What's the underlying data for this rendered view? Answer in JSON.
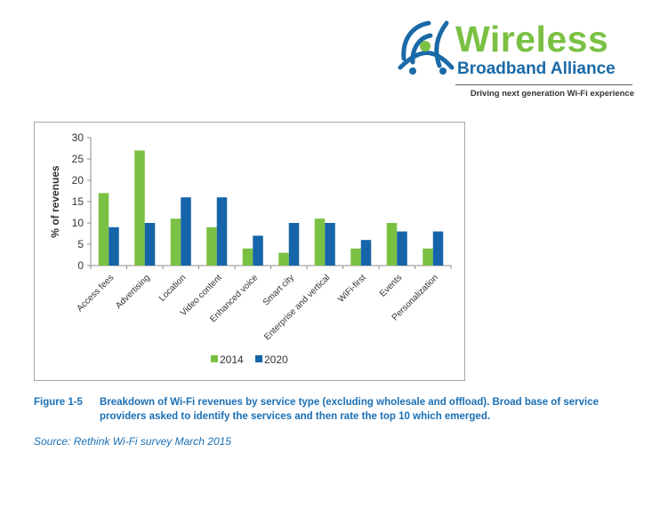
{
  "logo": {
    "wordmark": "Wireless",
    "subbrand": "Broadband Alliance",
    "tagline": "Driving next generation Wi-Fi experience",
    "icon": "wba-wifi-signal-icon"
  },
  "figure": {
    "label": "Figure 1-5",
    "caption": "Breakdown of Wi-Fi revenues by service type (excluding wholesale and offload). Broad base of service providers asked to identify the services and then rate the top 10 which emerged.",
    "source": "Source: Rethink Wi-Fi survey March 2015"
  },
  "chart_data": {
    "type": "bar",
    "ylabel": "% of revenues",
    "xlabel": "",
    "ylim": [
      0,
      30
    ],
    "yticks": [
      0,
      5,
      10,
      15,
      20,
      25,
      30
    ],
    "grid": false,
    "legend_position": "bottom",
    "categories": [
      "Access fees",
      "Advertising",
      "Location",
      "Video content",
      "Enhanced voice",
      "Smart city",
      "Enterprise and vertical",
      "WiFi-first",
      "Events",
      "Personalization"
    ],
    "series": [
      {
        "name": "2014",
        "color": "#7ac143",
        "values": [
          17,
          27,
          11,
          9,
          4,
          3,
          11,
          4,
          10,
          4
        ]
      },
      {
        "name": "2020",
        "color": "#1565a8",
        "values": [
          9,
          10,
          16,
          16,
          7,
          10,
          10,
          6,
          8,
          8
        ]
      }
    ]
  }
}
